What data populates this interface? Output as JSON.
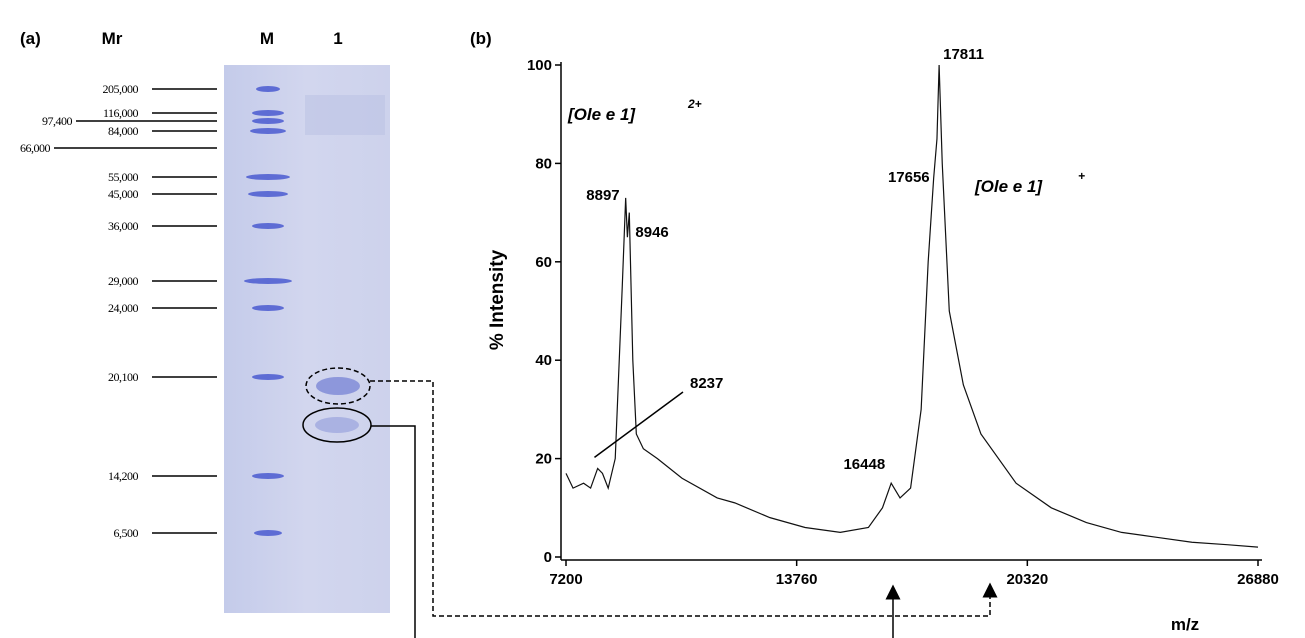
{
  "panel_a": {
    "label": "(a)",
    "lane_headers": [
      "Mr",
      "M",
      "1"
    ],
    "markers": [
      "205,000",
      "116,000",
      "97,400",
      "84,000",
      "66,000",
      "55,000",
      "45,000",
      "36,000",
      "29,000",
      "24,000",
      "20,100",
      "14,200",
      "6,500"
    ]
  },
  "chart_data": {
    "type": "line",
    "panel_label": "(b)",
    "y_label": "% Intensity",
    "x_label": "m/z",
    "xlim": [
      7200,
      26880
    ],
    "xticks": [
      7200,
      13760,
      20320,
      26880
    ],
    "ylim": [
      0,
      100
    ],
    "yticks": [
      0,
      20,
      40,
      60,
      80,
      100
    ],
    "annotations": [
      {
        "text": "[Ole e 1]",
        "sup": "2+"
      },
      {
        "text": "[Ole e 1]",
        "sup": "+"
      }
    ],
    "series": [
      {
        "color": "#111111",
        "x": [
          7200,
          7400,
          7700,
          7900,
          8100,
          8237,
          8400,
          8600,
          8800,
          8897,
          8946,
          9000,
          9100,
          9200,
          9400,
          9800,
          10500,
          11500,
          12000,
          13000,
          14000,
          15000,
          15800,
          16200,
          16448,
          16700,
          17000,
          17300,
          17500,
          17656,
          17750,
          17811,
          17900,
          18100,
          18500,
          19000,
          20000,
          21000,
          22000,
          23000,
          24000,
          25000,
          26000,
          26880
        ],
        "values": [
          17,
          14,
          15,
          14,
          18,
          17,
          14,
          20,
          55,
          73,
          65,
          70,
          40,
          25,
          22,
          20,
          16,
          12,
          11,
          8,
          6,
          5,
          6,
          10,
          15,
          12,
          14,
          30,
          60,
          77,
          85,
          100,
          80,
          50,
          35,
          25,
          15,
          10,
          7,
          5,
          4,
          3,
          2.5,
          2
        ]
      }
    ]
  }
}
